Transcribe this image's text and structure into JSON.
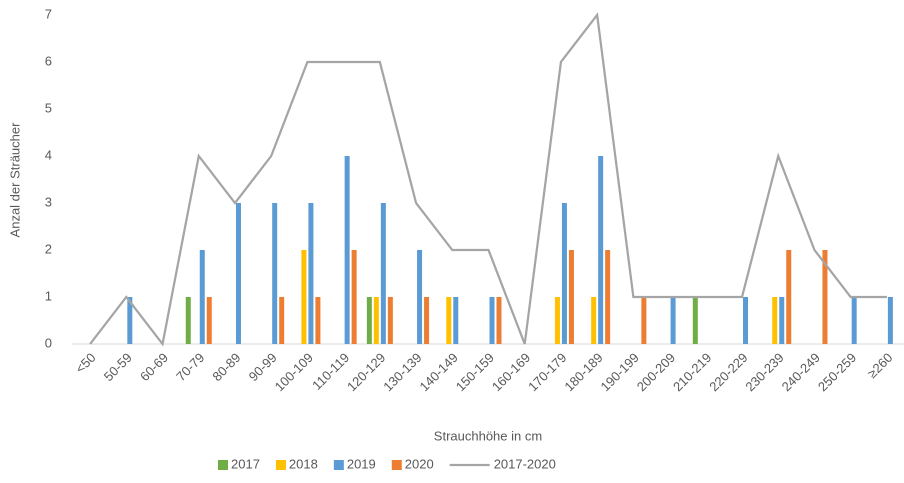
{
  "chart_data": {
    "type": "bar",
    "y_label": "Anzal der Sträucher",
    "x_label": "Strauchhöhe in cm",
    "categories": [
      "<50",
      "50-59",
      "60-69",
      "70-79",
      "80-89",
      "90-99",
      "100-109",
      "110-119",
      "120-129",
      "130-139",
      "140-149",
      "150-159",
      "160-169",
      "170-179",
      "180-189",
      "190-199",
      "200-209",
      "210-219",
      "220-229",
      "230-239",
      "240-249",
      "250-259",
      "≥260"
    ],
    "series": [
      {
        "name": "2017",
        "color": "#70ad47",
        "values": [
          0,
          0,
          0,
          1,
          0,
          0,
          0,
          0,
          1,
          0,
          0,
          0,
          0,
          0,
          0,
          0,
          0,
          1,
          0,
          0,
          0,
          0,
          0
        ]
      },
      {
        "name": "2018",
        "color": "#ffc000",
        "values": [
          0,
          0,
          0,
          0,
          0,
          0,
          2,
          0,
          1,
          0,
          1,
          0,
          0,
          1,
          1,
          0,
          0,
          0,
          0,
          1,
          0,
          0,
          0
        ]
      },
      {
        "name": "2019",
        "color": "#5b9bd5",
        "values": [
          0,
          1,
          0,
          2,
          3,
          3,
          3,
          4,
          3,
          2,
          1,
          1,
          0,
          3,
          4,
          0,
          1,
          0,
          1,
          1,
          0,
          1,
          1
        ]
      },
      {
        "name": "2020",
        "color": "#ed7d31",
        "values": [
          0,
          0,
          0,
          1,
          0,
          1,
          1,
          2,
          1,
          1,
          0,
          1,
          0,
          2,
          2,
          1,
          0,
          0,
          0,
          2,
          2,
          0,
          0
        ]
      },
      {
        "name": "2017-2020",
        "type": "line",
        "color": "#a5a5a5",
        "values": [
          0,
          1,
          0,
          4,
          3,
          4,
          6,
          6,
          6,
          3,
          2,
          2,
          0,
          6,
          7,
          1,
          1,
          1,
          1,
          4,
          2,
          1,
          1
        ]
      }
    ],
    "ylim": [
      0,
      7
    ],
    "yticks": [
      0,
      1,
      2,
      3,
      4,
      5,
      6,
      7
    ],
    "grid": false,
    "legend": "bottom"
  }
}
